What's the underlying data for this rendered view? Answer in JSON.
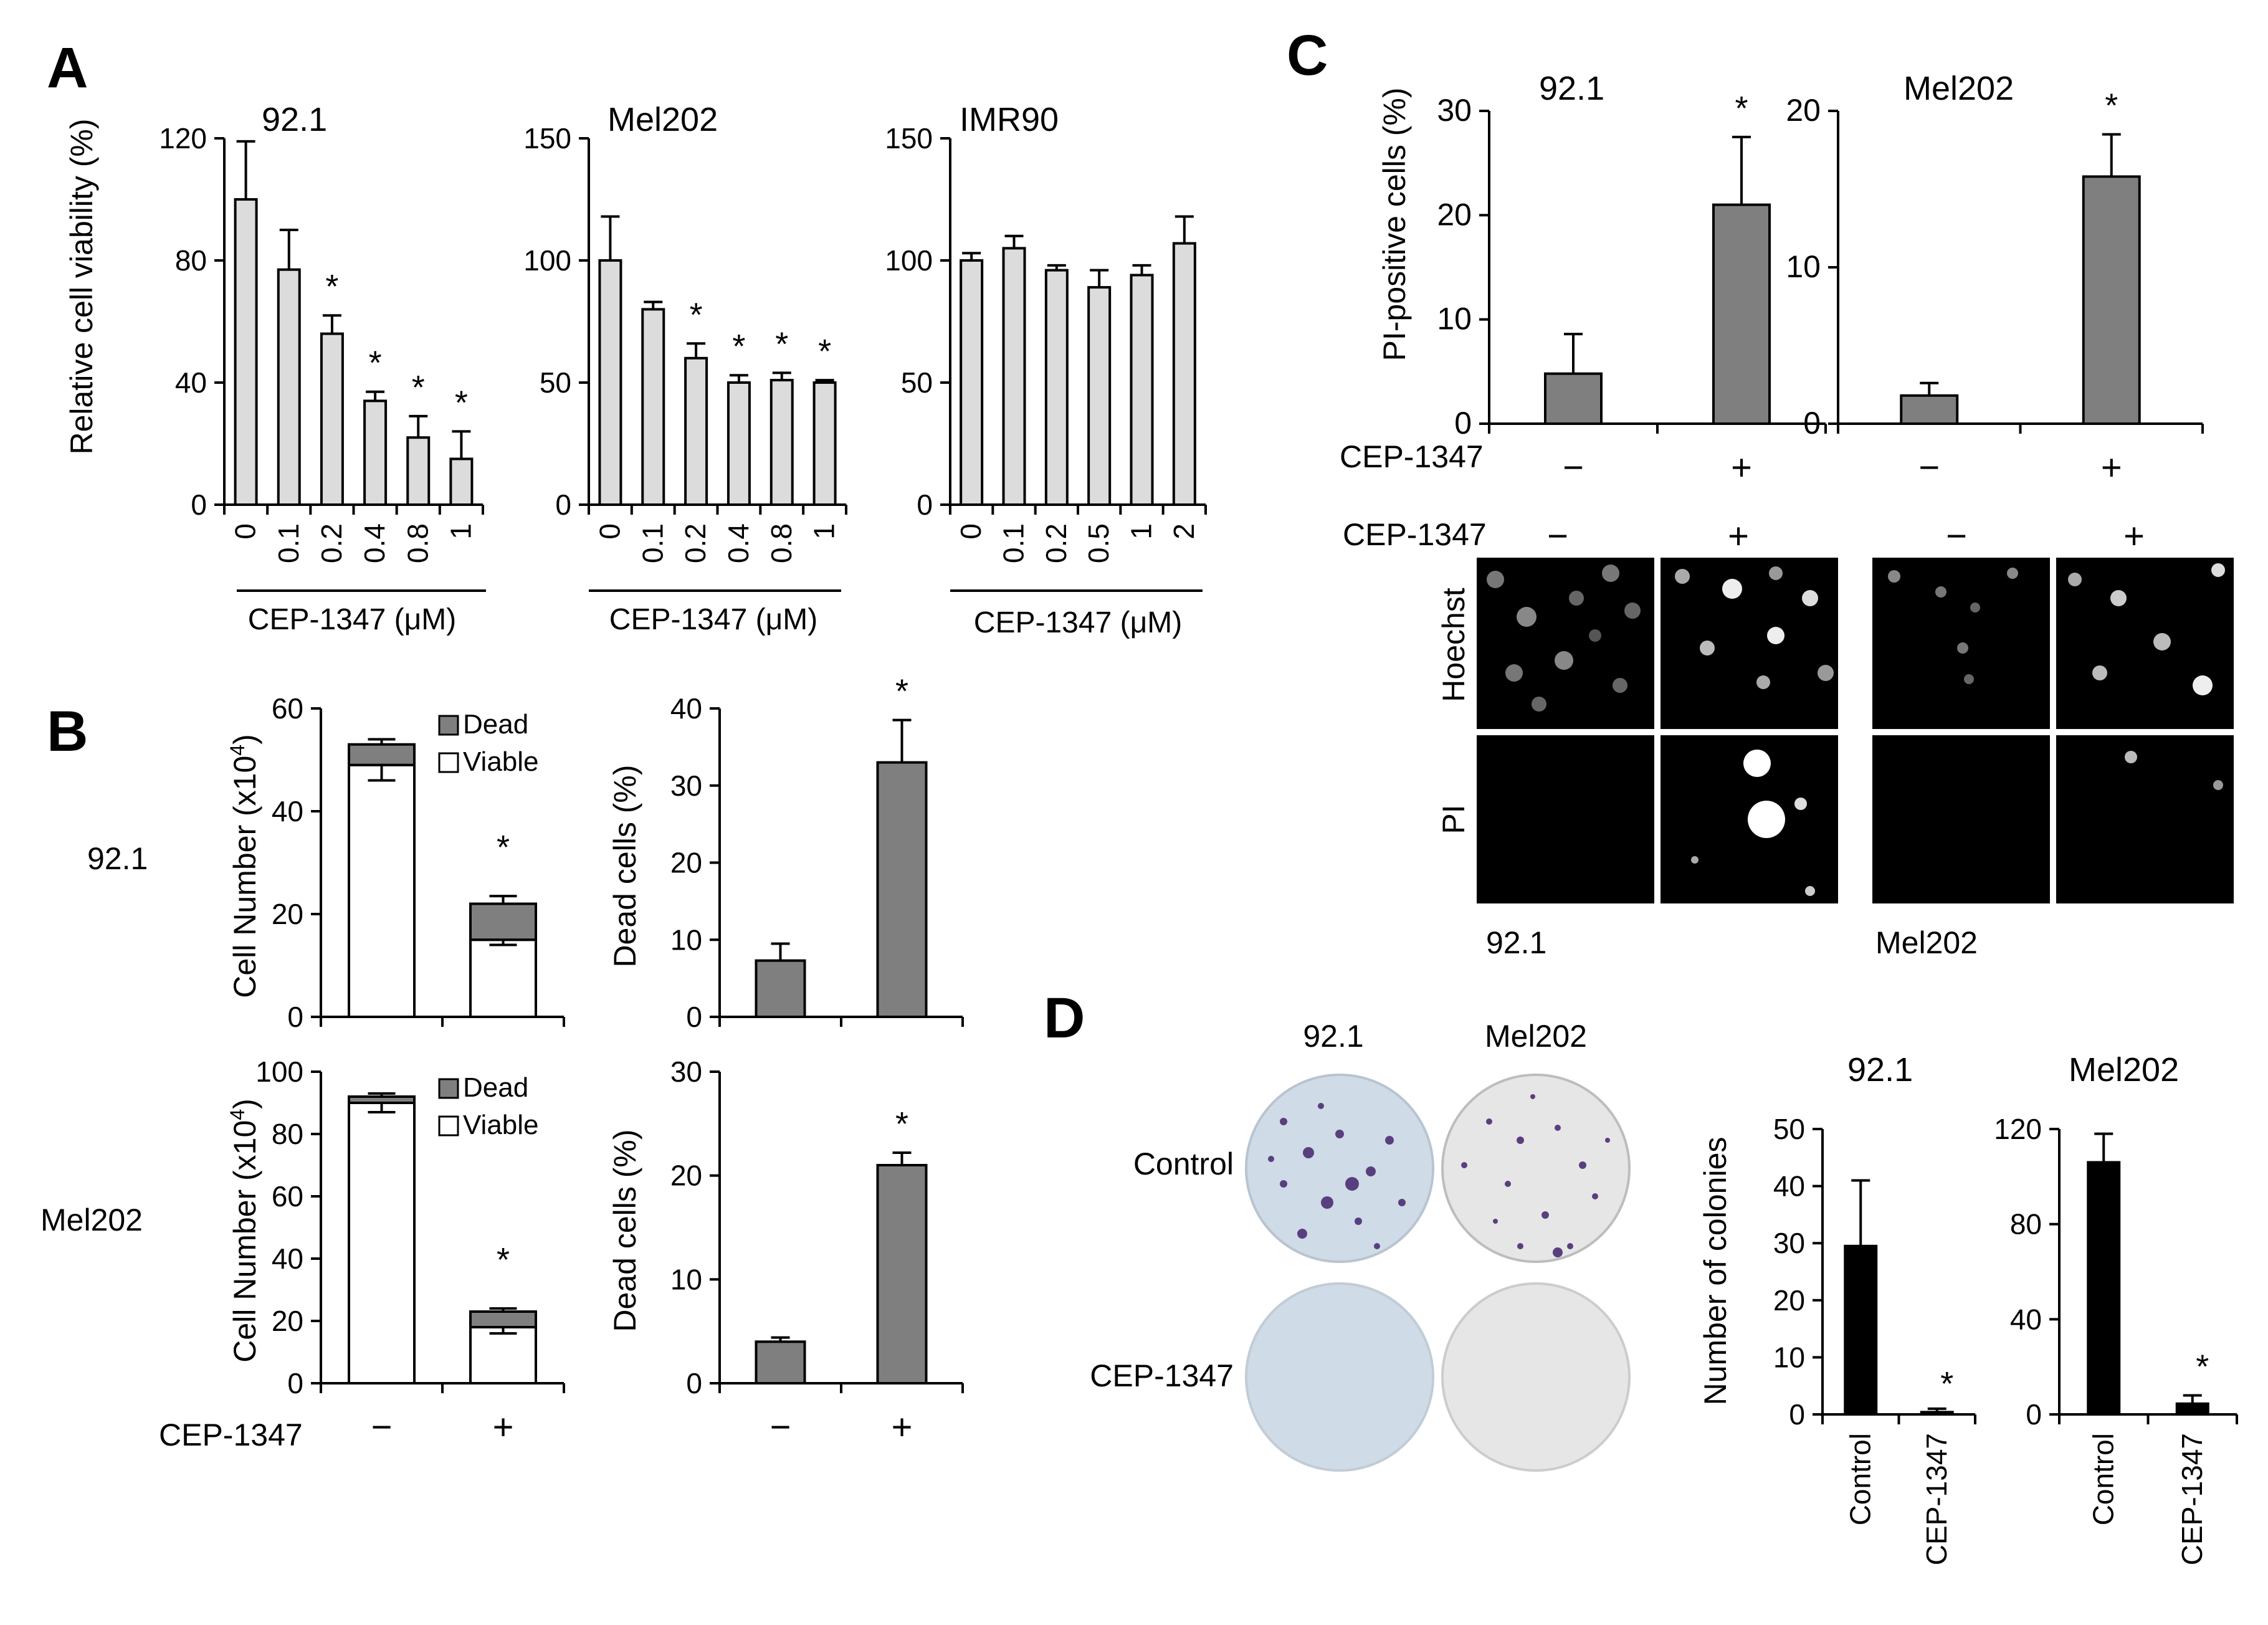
{
  "panels": {
    "A": "A",
    "B": "B",
    "C": "C",
    "D": "D"
  },
  "colors": {
    "light_bar": "#dcdcdc",
    "mid_bar": "#7f7f7f",
    "dark_bar": "#000000",
    "axis": "#000000",
    "plate_blue": "#cfdbe6",
    "plate_gray": "#e6e6e6",
    "colony": "#5a3f7f"
  },
  "icons": {
    "significance": "asterisk",
    "micrograph": "fluorescence-micrograph",
    "plate": "colony-plate"
  },
  "chart_data": [
    {
      "id": "A1",
      "type": "bar",
      "panel": "A",
      "title": "92.1",
      "ylabel": "Relative cell viability (%)",
      "xlabel": "CEP-1347  (μM)",
      "ylim": [
        0,
        120
      ],
      "yticks": [
        "0",
        "40",
        "80",
        "120"
      ],
      "categories": [
        "0",
        "0.1",
        "0.2",
        "0.4",
        "0.8",
        "1"
      ],
      "values": [
        100,
        77,
        56,
        34,
        22,
        15
      ],
      "errors": [
        19,
        13,
        6,
        3,
        7,
        9
      ],
      "significant": [
        false,
        false,
        true,
        true,
        true,
        true
      ],
      "grid": false,
      "legend": "none"
    },
    {
      "id": "A2",
      "type": "bar",
      "panel": "A",
      "title": "Mel202",
      "xlabel": "CEP-1347  (μM)",
      "ylim": [
        0,
        150
      ],
      "yticks": [
        "0",
        "50",
        "100",
        "150"
      ],
      "categories": [
        "0",
        "0.1",
        "0.2",
        "0.4",
        "0.8",
        "1"
      ],
      "values": [
        100,
        80,
        60,
        50,
        51,
        50
      ],
      "errors": [
        18,
        3,
        6,
        3,
        3,
        1
      ],
      "significant": [
        false,
        false,
        true,
        true,
        true,
        true
      ],
      "grid": false,
      "legend": "none"
    },
    {
      "id": "A3",
      "type": "bar",
      "panel": "A",
      "title": "IMR90",
      "xlabel": "CEP-1347  (μM)",
      "ylim": [
        0,
        150
      ],
      "yticks": [
        "0",
        "50",
        "100",
        "150"
      ],
      "categories": [
        "0",
        "0.1",
        "0.2",
        "0.5",
        "1",
        "2"
      ],
      "values": [
        100,
        105,
        96,
        89,
        94,
        107
      ],
      "errors": [
        3,
        5,
        2,
        7,
        4,
        11
      ],
      "significant": [
        false,
        false,
        false,
        false,
        false,
        false
      ],
      "grid": false,
      "legend": "none"
    },
    {
      "id": "B1",
      "type": "bar",
      "stacked": true,
      "panel": "B",
      "row_label": "92.1",
      "ylabel": "Cell Number  (x10",
      "ylabel_sup": "4",
      "ylabel_close": ")",
      "ylim": [
        0,
        60
      ],
      "yticks": [
        "0",
        "20",
        "40",
        "60"
      ],
      "categories": [
        "−",
        "+"
      ],
      "series": [
        {
          "name": "Viable",
          "values": [
            49,
            15
          ],
          "errors": [
            3,
            1
          ]
        },
        {
          "name": "Dead",
          "values": [
            4,
            7
          ],
          "errors": [
            1,
            1.5
          ]
        }
      ],
      "significant": [
        false,
        true
      ],
      "legend": "top-right",
      "grid": false
    },
    {
      "id": "B2",
      "type": "bar",
      "panel": "B",
      "ylabel": "Dead cells (%)",
      "ylim": [
        0,
        40
      ],
      "yticks": [
        "0",
        "10",
        "20",
        "30",
        "40"
      ],
      "categories": [
        "−",
        "+"
      ],
      "values": [
        7.3,
        33
      ],
      "errors": [
        2.2,
        5.5
      ],
      "significant": [
        false,
        true
      ],
      "grid": false,
      "legend": "none"
    },
    {
      "id": "B3",
      "type": "bar",
      "stacked": true,
      "panel": "B",
      "row_label": "Mel202",
      "ylabel": "Cell Number  (x10",
      "ylabel_sup": "4",
      "ylabel_close": ")",
      "ylim": [
        0,
        100
      ],
      "yticks": [
        "0",
        "20",
        "40",
        "60",
        "80",
        "100"
      ],
      "categories": [
        "−",
        "+"
      ],
      "series": [
        {
          "name": "Viable",
          "values": [
            90,
            18
          ],
          "errors": [
            3,
            2
          ]
        },
        {
          "name": "Dead",
          "values": [
            2,
            5
          ],
          "errors": [
            1,
            1
          ]
        }
      ],
      "significant": [
        false,
        true
      ],
      "legend": "top-right",
      "grid": false
    },
    {
      "id": "B4",
      "type": "bar",
      "panel": "B",
      "ylabel": "Dead cells (%)",
      "ylim": [
        0,
        30
      ],
      "yticks": [
        "0",
        "10",
        "20",
        "30"
      ],
      "categories": [
        "−",
        "+"
      ],
      "values": [
        4,
        21
      ],
      "errors": [
        0.4,
        1.2
      ],
      "significant": [
        false,
        true
      ],
      "grid": false,
      "legend": "none"
    },
    {
      "id": "C1",
      "type": "bar",
      "panel": "C",
      "title": "92.1",
      "ylabel": "PI-positive cells (%)",
      "ylim": [
        0,
        30
      ],
      "yticks": [
        "0",
        "10",
        "20",
        "30"
      ],
      "categories": [
        "−",
        "+"
      ],
      "values": [
        4.8,
        21
      ],
      "errors": [
        3.8,
        6.5
      ],
      "significant": [
        false,
        true
      ],
      "grid": false,
      "legend": "none"
    },
    {
      "id": "C2",
      "type": "bar",
      "panel": "C",
      "title": "Mel202",
      "ylim": [
        0,
        20
      ],
      "yticks": [
        "0",
        "10",
        "20"
      ],
      "categories": [
        "−",
        "+"
      ],
      "values": [
        1.8,
        15.8
      ],
      "errors": [
        0.8,
        2.7
      ],
      "significant": [
        false,
        true
      ],
      "grid": false,
      "legend": "none"
    },
    {
      "id": "D1",
      "type": "bar",
      "panel": "D",
      "title": "92.1",
      "ylabel": "Number  of colonies",
      "ylim": [
        0,
        50
      ],
      "yticks": [
        "0",
        "10",
        "20",
        "30",
        "40",
        "50"
      ],
      "categories": [
        "Control",
        "CEP-1347"
      ],
      "values": [
        29.5,
        0.4
      ],
      "errors": [
        11.5,
        0.6
      ],
      "significant": [
        false,
        true
      ],
      "grid": false,
      "legend": "none"
    },
    {
      "id": "D2",
      "type": "bar",
      "panel": "D",
      "title": "Mel202",
      "ylim": [
        0,
        120
      ],
      "yticks": [
        "0",
        "40",
        "80",
        "120"
      ],
      "categories": [
        "Control",
        "CEP-1347"
      ],
      "values": [
        106,
        4.5
      ],
      "errors": [
        12,
        3.5
      ],
      "significant": [
        false,
        true
      ],
      "grid": false,
      "legend": "none"
    }
  ],
  "labels": {
    "asterisk": "*",
    "treatment": "CEP-1347",
    "minus": "−",
    "plus": "+",
    "dead": "Dead",
    "viable": "Viable",
    "row_b_top": "92.1",
    "row_b_bottom": "Mel202",
    "c_stain_hoechst": "Hoechst",
    "c_stain_pi": "PI",
    "c_cell_left": "92.1",
    "c_cell_right": "Mel202",
    "d_col_left": "92.1",
    "d_col_right": "Mel202",
    "d_row_top": "Control",
    "d_row_bottom": "CEP-1347"
  }
}
